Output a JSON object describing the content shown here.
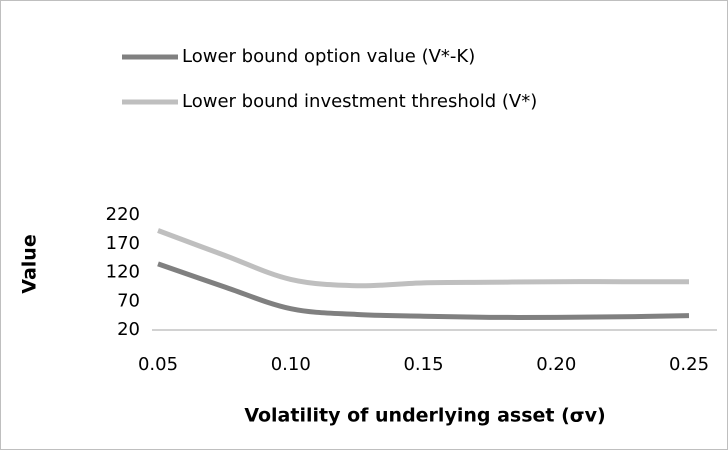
{
  "chart_data": {
    "type": "line",
    "x_label": "Volatility of underlying asset (σv)",
    "y_label": "Value",
    "x": [
      0.05,
      0.075,
      0.1,
      0.125,
      0.15,
      0.175,
      0.2,
      0.225,
      0.25
    ],
    "series": [
      {
        "name": "Lower bound option value (V*-K)",
        "color": "#808080",
        "values": [
          135,
          95,
          57,
          47,
          44,
          42,
          42,
          43,
          45
        ]
      },
      {
        "name": "Lower bound investment threshold (V*)",
        "color": "#bfbfbf",
        "values": [
          193,
          150,
          108,
          97,
          102,
          103,
          104,
          104,
          104
        ]
      }
    ],
    "xlim": [
      0.05,
      0.25
    ],
    "xticks": [
      0.05,
      {
        "value": 0.1,
        "label": "0.10"
      },
      0.15,
      {
        "value": 0.2,
        "label": "0.20"
      },
      0.25
    ],
    "ylim": [
      20,
      220
    ],
    "yticks": [
      20,
      70,
      120,
      170,
      220
    ],
    "grid": false,
    "legend": "top"
  }
}
